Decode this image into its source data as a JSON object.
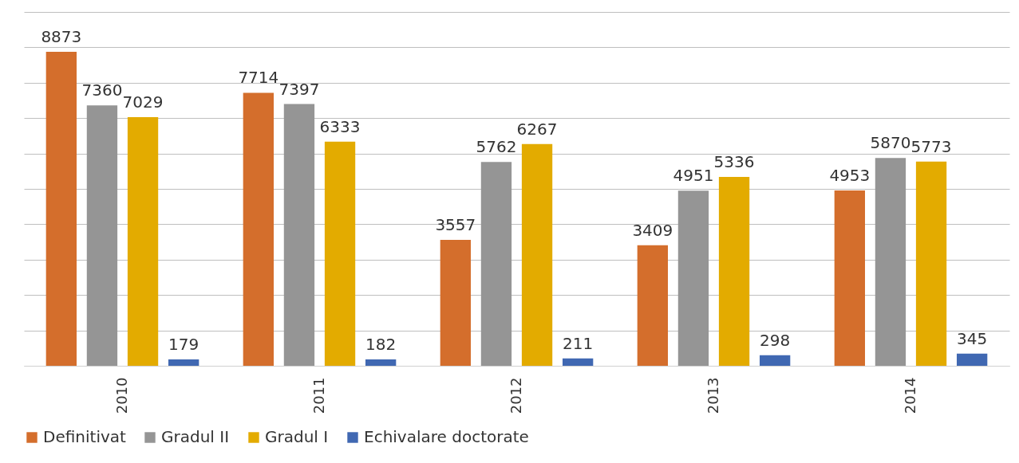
{
  "chart_data": {
    "type": "bar",
    "categories": [
      "2010",
      "2011",
      "2012",
      "2013",
      "2014"
    ],
    "series": [
      {
        "name": "Definitivat",
        "color": "#d46e2c",
        "values": [
          8873,
          7714,
          3557,
          3409,
          4953
        ]
      },
      {
        "name": "Gradul II",
        "color": "#959595",
        "values": [
          7360,
          7397,
          5762,
          4951,
          5870
        ]
      },
      {
        "name": "Gradul I",
        "color": "#e3ab00",
        "values": [
          7029,
          6333,
          6267,
          5336,
          5773
        ]
      },
      {
        "name": "Echivalare doctorate",
        "color": "#4068b2",
        "values": [
          179,
          182,
          211,
          298,
          345
        ]
      }
    ],
    "ylim": [
      0,
      10000
    ],
    "yticks": [
      {
        "value": 0,
        "label": null
      },
      {
        "value": 1000,
        "label": null
      },
      {
        "value": 2000,
        "label": null
      },
      {
        "value": 3000,
        "label": null
      },
      {
        "value": 4000,
        "label": null
      },
      {
        "value": 5000,
        "label": null
      },
      {
        "value": 6000,
        "label": null
      },
      {
        "value": 7000,
        "label": null
      },
      {
        "value": 8000,
        "label": null
      },
      {
        "value": 9000,
        "label": null
      },
      {
        "value": 10000,
        "label": null
      }
    ],
    "grid": "y",
    "legend": "bottom",
    "tick_labels": "x",
    "data_labels": true
  }
}
